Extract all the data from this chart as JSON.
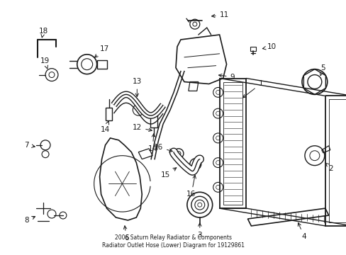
{
  "title": "2006 Saturn Relay Radiator & Components\nRadiator Outlet Hose (Lower) Diagram for 19129861",
  "bg_color": "#ffffff",
  "lc": "#1a1a1a",
  "fig_w": 4.89,
  "fig_h": 3.6,
  "dpi": 100
}
